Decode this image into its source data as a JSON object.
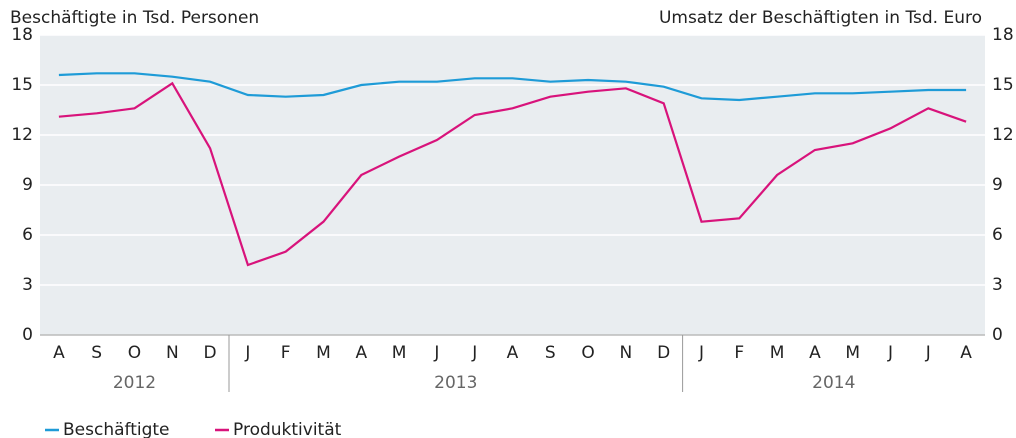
{
  "chart_data": {
    "type": "line",
    "y_label": "Beschäftigte in Tsd. Personen",
    "y2_label": "Umsatz der Beschäftigten in Tsd. Euro",
    "categories": [
      "A",
      "S",
      "O",
      "N",
      "D",
      "J",
      "F",
      "M",
      "A",
      "M",
      "J",
      "J",
      "A",
      "S",
      "O",
      "N",
      "D",
      "J",
      "F",
      "M",
      "A",
      "M",
      "J",
      "J",
      "A"
    ],
    "years": [
      "2012",
      "2013",
      "2014"
    ],
    "series": [
      {
        "name": "Beschäftigte",
        "color": "#1e9bd7",
        "values": [
          15.6,
          15.7,
          15.7,
          15.5,
          15.2,
          14.4,
          14.3,
          14.4,
          15.0,
          15.2,
          15.2,
          15.4,
          15.4,
          15.2,
          15.3,
          15.2,
          14.9,
          14.2,
          14.1,
          14.3,
          14.5,
          14.5,
          14.6,
          14.7,
          14.7
        ]
      },
      {
        "name": "Produktivität",
        "color": "#d8137b",
        "axis": "y2",
        "values": [
          13.1,
          13.3,
          13.6,
          15.1,
          11.2,
          4.2,
          5.0,
          6.8,
          9.6,
          10.7,
          11.7,
          13.2,
          13.6,
          14.3,
          14.6,
          14.8,
          13.9,
          6.8,
          7.0,
          9.6,
          11.1,
          11.5,
          12.4,
          13.6,
          12.8
        ]
      }
    ],
    "ylim": [
      0,
      18
    ],
    "yticks": [
      0,
      3,
      6,
      9,
      12,
      15,
      18
    ],
    "y2lim": [
      0,
      18
    ],
    "y2ticks": [
      0,
      3,
      6,
      9,
      12,
      15,
      18
    ],
    "grid": true,
    "legend": "bottom"
  }
}
